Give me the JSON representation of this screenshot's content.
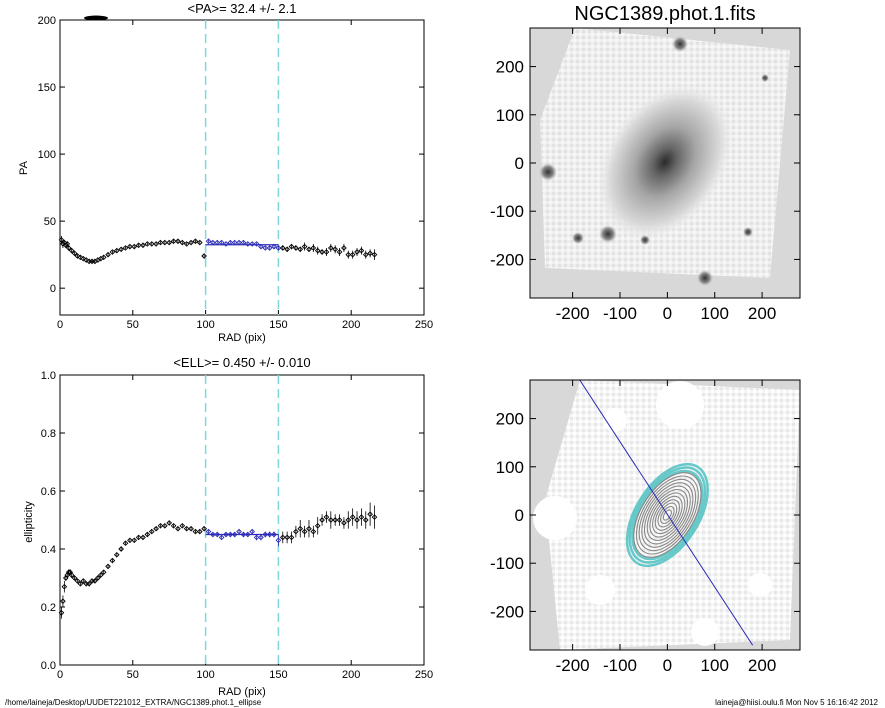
{
  "footer": {
    "path": "/home/laineja/Desktop/UUDET221012_EXTRA/NGC1389.phot.1_ellipse",
    "user_date": "laineja@hiisi.oulu.fi  Mon Nov  5 16:16:42 2012"
  },
  "colors": {
    "fit_range_line": "#7fd8dc",
    "selected_points": "#2b2bb8",
    "mean_line": "#2b2bb8",
    "points": "#000000",
    "contours": "#888888",
    "outer_contours": "#66c8c8",
    "major_axis": "#2b2bb8"
  },
  "chart_data": [
    {
      "type": "scatter",
      "name": "pa-profile",
      "title": "<PA>=  32.4 +/-   2.1",
      "xlabel": "RAD (pix)",
      "ylabel": "PA",
      "xlim": [
        0,
        250
      ],
      "ylim": [
        -20,
        200
      ],
      "xticks": [
        0,
        50,
        100,
        150,
        200,
        250
      ],
      "yticks": [
        0,
        50,
        100,
        150,
        200
      ],
      "vlines": [
        100,
        150
      ],
      "mean_line": {
        "x": [
          100,
          150
        ],
        "y": 32.4
      },
      "points": {
        "x": [
          1,
          2,
          3,
          4,
          5,
          6,
          8,
          10,
          12,
          14,
          16,
          18,
          20,
          22,
          24,
          26,
          28,
          30,
          33,
          36,
          39,
          42,
          45,
          48,
          51,
          54,
          57,
          60,
          63,
          66,
          69,
          72,
          75,
          78,
          81,
          84,
          87,
          90,
          93,
          96,
          99,
          102,
          105,
          108,
          111,
          114,
          117,
          120,
          123,
          126,
          129,
          132,
          135,
          138,
          141,
          144,
          147,
          150,
          153,
          156,
          159,
          162,
          165,
          168,
          171,
          174,
          177,
          180,
          183,
          186,
          189,
          192,
          195,
          198,
          201,
          204,
          207,
          210,
          213,
          216
        ],
        "y": [
          36,
          33,
          34,
          32,
          33,
          30,
          28,
          26,
          24,
          23,
          22,
          21,
          20,
          20,
          20,
          21,
          22,
          23,
          25,
          27,
          28,
          29,
          30,
          31,
          31,
          32,
          32,
          33,
          33,
          33,
          34,
          34,
          34,
          35,
          35,
          34,
          33,
          34,
          35,
          34,
          24,
          35,
          34,
          34,
          34,
          33,
          34,
          34,
          34,
          34,
          33,
          33,
          33,
          31,
          30,
          30,
          31,
          30,
          30,
          29,
          31,
          30,
          29,
          31,
          29,
          30,
          28,
          27,
          27,
          30,
          29,
          27,
          30,
          25,
          25,
          27,
          28,
          25,
          26,
          25
        ],
        "err": [
          3,
          3,
          2,
          2,
          2,
          2,
          1,
          1,
          1,
          1,
          1,
          1,
          1,
          1,
          1,
          1,
          1,
          1,
          1,
          1,
          1,
          1,
          1,
          1,
          1,
          1,
          1,
          1,
          1,
          1,
          1,
          1,
          1,
          1,
          1,
          1,
          1,
          1,
          1,
          1,
          1,
          1,
          1,
          1,
          1,
          1,
          1,
          1,
          1,
          1,
          1,
          1,
          1,
          1,
          1,
          2,
          2,
          2,
          2,
          2,
          2,
          2,
          2,
          3,
          2,
          3,
          3,
          2,
          3,
          3,
          3,
          3,
          3,
          3,
          3,
          3,
          3,
          3,
          3,
          4
        ],
        "selected_range": [
          100,
          150
        ]
      }
    },
    {
      "type": "scatter",
      "name": "ellipticity-profile",
      "title": "<ELL>= 0.450 +/-  0.010",
      "xlabel": "RAD (pix)",
      "ylabel": "ellipticity",
      "xlim": [
        0,
        250
      ],
      "ylim": [
        0,
        1
      ],
      "xticks": [
        0,
        50,
        100,
        150,
        200,
        250
      ],
      "yticks": [
        0.0,
        0.2,
        0.4,
        0.6,
        0.8,
        1.0
      ],
      "ytick_labels": [
        "0.0",
        "0.2",
        "0.4",
        "0.6",
        "0.8",
        "1.0"
      ],
      "vlines": [
        100,
        150
      ],
      "mean_line": {
        "x": [
          100,
          150
        ],
        "y": 0.45
      },
      "points": {
        "x": [
          1,
          2,
          3,
          4,
          5,
          6,
          7,
          8,
          10,
          12,
          14,
          16,
          18,
          20,
          22,
          24,
          26,
          28,
          30,
          33,
          36,
          39,
          42,
          45,
          48,
          51,
          54,
          57,
          60,
          63,
          66,
          69,
          72,
          75,
          78,
          81,
          84,
          87,
          90,
          93,
          96,
          99,
          102,
          105,
          108,
          111,
          114,
          117,
          120,
          123,
          126,
          129,
          132,
          135,
          138,
          141,
          144,
          147,
          150,
          153,
          156,
          159,
          162,
          165,
          168,
          171,
          174,
          177,
          180,
          183,
          186,
          189,
          192,
          195,
          198,
          201,
          204,
          207,
          210,
          213,
          216
        ],
        "y": [
          0.18,
          0.22,
          0.27,
          0.3,
          0.31,
          0.32,
          0.32,
          0.31,
          0.3,
          0.29,
          0.28,
          0.29,
          0.28,
          0.28,
          0.29,
          0.29,
          0.3,
          0.31,
          0.32,
          0.34,
          0.36,
          0.38,
          0.4,
          0.42,
          0.43,
          0.43,
          0.44,
          0.44,
          0.45,
          0.46,
          0.47,
          0.48,
          0.48,
          0.49,
          0.48,
          0.47,
          0.48,
          0.47,
          0.47,
          0.46,
          0.46,
          0.47,
          0.46,
          0.45,
          0.45,
          0.44,
          0.45,
          0.45,
          0.45,
          0.46,
          0.45,
          0.45,
          0.46,
          0.44,
          0.44,
          0.45,
          0.45,
          0.45,
          0.43,
          0.44,
          0.44,
          0.44,
          0.46,
          0.47,
          0.46,
          0.47,
          0.46,
          0.48,
          0.5,
          0.51,
          0.5,
          0.5,
          0.5,
          0.49,
          0.5,
          0.51,
          0.5,
          0.51,
          0.5,
          0.52,
          0.51
        ],
        "err": [
          0.02,
          0.02,
          0.02,
          0.01,
          0.01,
          0.01,
          0.01,
          0.01,
          0.005,
          0.005,
          0.005,
          0.005,
          0.005,
          0.005,
          0.005,
          0.005,
          0.005,
          0.005,
          0.005,
          0.005,
          0.005,
          0.005,
          0.005,
          0.005,
          0.005,
          0.005,
          0.005,
          0.005,
          0.005,
          0.005,
          0.005,
          0.005,
          0.005,
          0.005,
          0.005,
          0.005,
          0.005,
          0.005,
          0.005,
          0.005,
          0.005,
          0.005,
          0.005,
          0.005,
          0.005,
          0.005,
          0.005,
          0.005,
          0.005,
          0.005,
          0.005,
          0.005,
          0.005,
          0.01,
          0.01,
          0.01,
          0.01,
          0.01,
          0.02,
          0.02,
          0.02,
          0.02,
          0.02,
          0.03,
          0.02,
          0.03,
          0.02,
          0.03,
          0.02,
          0.02,
          0.03,
          0.02,
          0.02,
          0.02,
          0.03,
          0.03,
          0.03,
          0.03,
          0.03,
          0.04,
          0.04
        ],
        "selected_range": [
          100,
          150
        ]
      }
    },
    {
      "type": "heatmap",
      "name": "galaxy-image",
      "title": "NGC1389.phot.1.fits",
      "xlim": [
        -290,
        280
      ],
      "ylim": [
        -280,
        280
      ],
      "xticks": [
        -200,
        -100,
        0,
        100,
        200
      ],
      "yticks": [
        -200,
        -100,
        0,
        100,
        200
      ],
      "center": [
        0,
        0
      ],
      "position_angle_deg": 32.4,
      "ellipticity": 0.45
    },
    {
      "type": "heatmap",
      "name": "isophote-contours",
      "xlim": [
        -290,
        280
      ],
      "ylim": [
        -280,
        280
      ],
      "xticks": [
        -200,
        -100,
        0,
        100,
        200
      ],
      "yticks": [
        -200,
        -100,
        0,
        100,
        200
      ],
      "center": [
        0,
        0
      ],
      "position_angle_deg": 32.4,
      "ellipticity": 0.45,
      "contour_semi_major_axes": [
        12,
        20,
        28,
        36,
        44,
        52,
        60,
        68,
        76,
        84,
        92,
        100
      ],
      "outer_contour_semi_major_axes": [
        104,
        112,
        120
      ],
      "major_axis_line": {
        "x": [
          -185,
          180
        ],
        "y": [
          280,
          -270
        ]
      }
    }
  ]
}
